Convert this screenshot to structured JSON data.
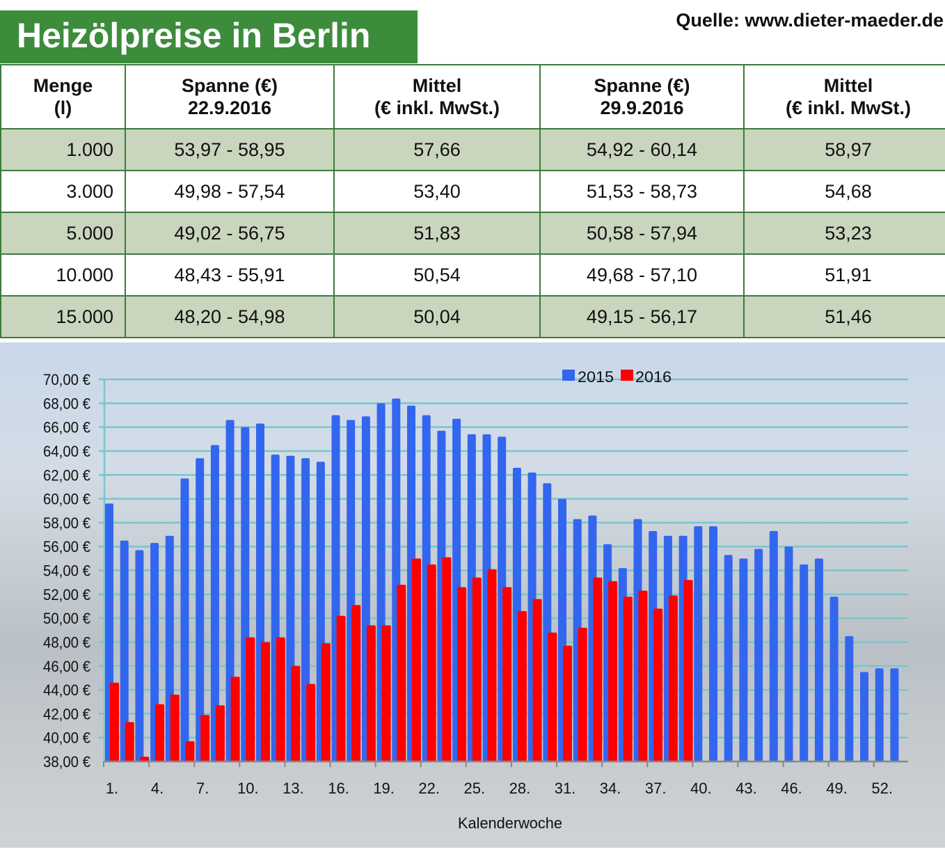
{
  "header": {
    "title": "Heizölpreise in Berlin",
    "source": "Quelle: www.dieter-maeder.de"
  },
  "table": {
    "headers": [
      [
        "Menge",
        "(l)"
      ],
      [
        "Spanne (€)",
        "22.9.2016"
      ],
      [
        "Mittel",
        "(€ inkl. MwSt.)"
      ],
      [
        "Spanne (€)",
        "29.9.2016"
      ],
      [
        "Mittel",
        "(€ inkl. MwSt.)"
      ]
    ],
    "rows": [
      [
        "1.000",
        "53,97 - 58,95",
        "57,66",
        "54,92 - 60,14",
        "58,97"
      ],
      [
        "3.000",
        "49,98 - 57,54",
        "53,40",
        "51,53 - 58,73",
        "54,68"
      ],
      [
        "5.000",
        "49,02 - 56,75",
        "51,83",
        "50,58 - 57,94",
        "53,23"
      ],
      [
        "10.000",
        "48,43 - 55,91",
        "50,54",
        "49,68 - 57,10",
        "51,91"
      ],
      [
        "15.000",
        "48,20 - 54,98",
        "50,04",
        "49,15 - 56,17",
        "51,46"
      ]
    ]
  },
  "chart_data": {
    "type": "bar",
    "xlabel": "Kalenderwoche",
    "ylabel": "",
    "ylim": [
      38,
      70
    ],
    "yticks": [
      "38,00 €",
      "40,00 €",
      "42,00 €",
      "44,00 €",
      "46,00 €",
      "48,00 €",
      "50,00 €",
      "52,00 €",
      "54,00 €",
      "56,00 €",
      "58,00 €",
      "60,00 €",
      "62,00 €",
      "64,00 €",
      "66,00 €",
      "68,00 €",
      "70,00 €"
    ],
    "xticks": [
      "1.",
      "4.",
      "7.",
      "10.",
      "13.",
      "16.",
      "19.",
      "22.",
      "25.",
      "28.",
      "31.",
      "34.",
      "37.",
      "40.",
      "43.",
      "46.",
      "49.",
      "52."
    ],
    "legend_position": "top",
    "grid": true,
    "series": [
      {
        "name": "2015",
        "color": "#3366ee",
        "values": [
          59.6,
          56.5,
          55.7,
          56.3,
          56.9,
          61.7,
          63.4,
          64.5,
          66.6,
          66.0,
          66.3,
          63.7,
          63.6,
          63.4,
          63.1,
          67.0,
          66.6,
          66.9,
          68.0,
          68.4,
          67.8,
          67.0,
          65.7,
          66.7,
          65.4,
          65.4,
          65.2,
          62.6,
          62.2,
          61.3,
          60.0,
          58.3,
          58.6,
          56.2,
          54.2,
          58.3,
          57.3,
          56.9,
          56.9,
          57.7,
          57.7,
          55.3,
          55.0,
          55.8,
          57.3,
          56.0,
          54.5,
          55.0,
          51.8,
          48.5,
          45.5,
          45.8,
          45.8
        ]
      },
      {
        "name": "2016",
        "color": "#ff0000",
        "values": [
          44.6,
          41.3,
          38.4,
          42.8,
          43.6,
          39.7,
          41.9,
          42.7,
          45.1,
          48.4,
          48.0,
          48.4,
          46.0,
          44.5,
          47.9,
          50.2,
          51.1,
          49.4,
          49.4,
          52.8,
          55.0,
          54.5,
          55.1,
          52.6,
          53.4,
          54.1,
          52.6,
          50.6,
          51.6,
          48.8,
          47.7,
          49.2,
          53.4,
          53.1,
          51.8,
          52.3,
          50.8,
          51.9,
          53.2
        ]
      }
    ]
  }
}
